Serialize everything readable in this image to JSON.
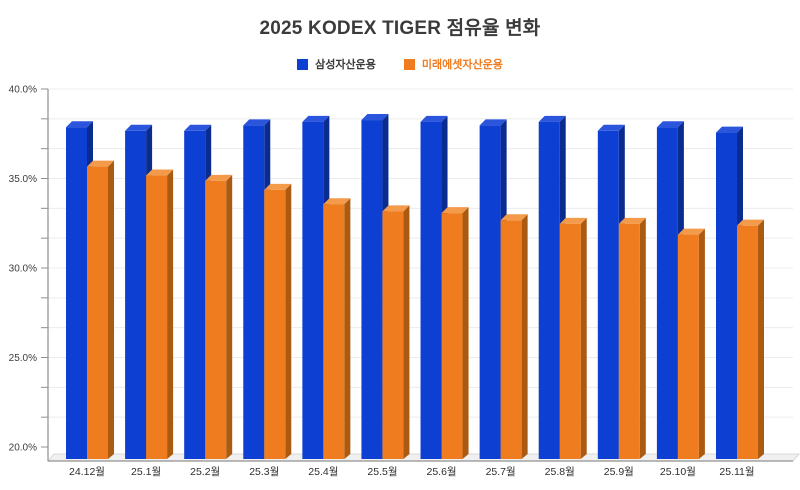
{
  "title": "2025 KODEX TIGER 점유율 변화",
  "legend": {
    "items": [
      {
        "label": "삼성자산운용",
        "swatch_color": "#0d3fd2",
        "label_color": "#3a3a3a"
      },
      {
        "label": "미래에셋자산운용",
        "swatch_color": "#ef7d1f",
        "label_color": "#f07c1f"
      }
    ]
  },
  "colors": {
    "samsung_front": "#0d3fd2",
    "samsung_top": "#2b55dd",
    "samsung_side": "#0b2c8f",
    "mirae_front": "#ef7d1f",
    "mirae_top": "#f39a4b",
    "mirae_side": "#aa5a11",
    "gridline": "#ececec",
    "axis": "#909090",
    "floor_fill": "#f0f0f0",
    "floor_edge": "#d8d8d8",
    "tick_label": "#3d3d3d",
    "category_label": "#2e2e2e"
  },
  "chart_data": {
    "type": "bar",
    "style": "3d-column",
    "title": "2025 KODEX TIGER 점유율 변화",
    "xlabel": "",
    "ylabel": "",
    "categories": [
      "24.12월",
      "25.1월",
      "25.2월",
      "25.3월",
      "25.4월",
      "25.5월",
      "25.6월",
      "25.7월",
      "25.8월",
      "25.9월",
      "25.10월",
      "25.11월"
    ],
    "series": [
      {
        "name": "삼성자산운용",
        "values": [
          38.2,
          38.0,
          38.0,
          38.3,
          38.5,
          38.6,
          38.5,
          38.3,
          38.5,
          38.0,
          38.2,
          37.9
        ]
      },
      {
        "name": "미래에셋자산운용",
        "values": [
          36.0,
          35.5,
          35.2,
          34.7,
          33.9,
          33.5,
          33.4,
          33.0,
          32.8,
          32.8,
          32.2,
          32.7
        ]
      }
    ],
    "ylim": [
      20,
      40
    ],
    "ytick_step": 5,
    "ytick_minor_step": 1.6667,
    "ytick_labels": [
      "20.0%",
      "25.0%",
      "30.0%",
      "35.0%",
      "40.0%"
    ],
    "grid": true,
    "legend_position": "top"
  }
}
